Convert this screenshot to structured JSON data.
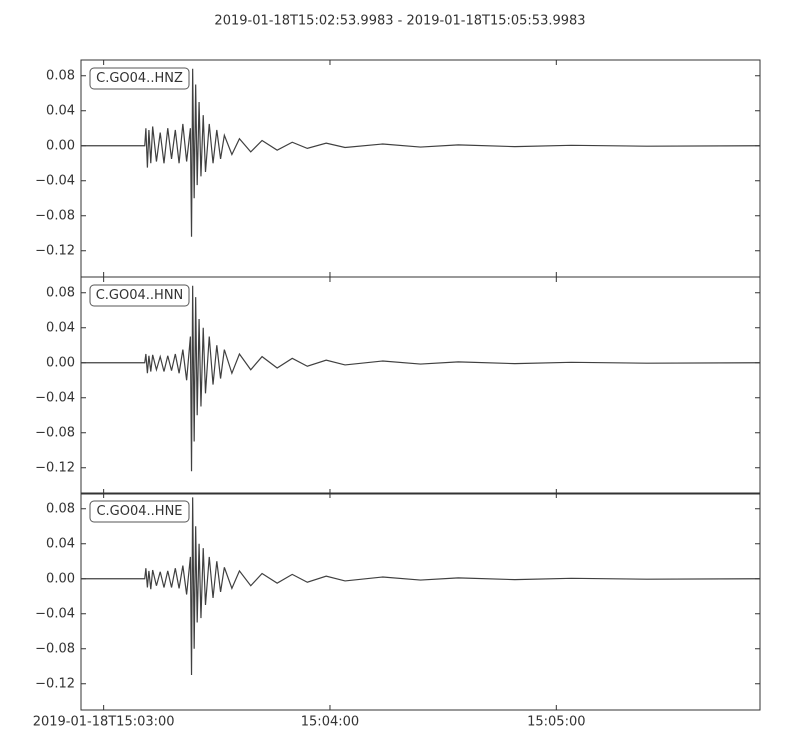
{
  "title": "2019-01-18T15:02:53.9983  -  2019-01-18T15:05:53.9983",
  "chart_data": [
    {
      "type": "line",
      "x": [
        0,
        16.9,
        17.2,
        17.6,
        18.0,
        18.5,
        19,
        20,
        21,
        22,
        23,
        24,
        25,
        26,
        27,
        28,
        29.0,
        29.3,
        29.6,
        30.0,
        30.4,
        30.8,
        31.3,
        31.8,
        32.4,
        33,
        34,
        35,
        36,
        37,
        38,
        40,
        42,
        45,
        48,
        52,
        56,
        60,
        65,
        70,
        80,
        90,
        100,
        115,
        130,
        150,
        180
      ],
      "series": [
        {
          "name": "C.GO04..HNZ",
          "color": "#404040",
          "values": [
            0,
            0,
            0.02,
            -0.025,
            0.018,
            -0.02,
            0.022,
            -0.018,
            0.015,
            -0.02,
            0.02,
            -0.015,
            0.018,
            -0.02,
            0.025,
            -0.018,
            0.02,
            -0.104,
            0.088,
            -0.06,
            0.07,
            -0.045,
            0.05,
            -0.035,
            0.035,
            -0.03,
            0.025,
            -0.02,
            0.018,
            -0.015,
            0.012,
            -0.01,
            0.008,
            -0.007,
            0.006,
            -0.005,
            0.004,
            -0.003,
            0.003,
            -0.002,
            0.002,
            -0.0015,
            0.001,
            -0.001,
            0.0005,
            -0.0005,
            0
          ]
        }
      ],
      "xlim": [
        0,
        180
      ],
      "xticks": [
        6.0017,
        66.0017,
        126.0017
      ],
      "ylim": [
        -0.15,
        0.098
      ],
      "yticks": [
        0.08,
        0.04,
        {
          "value": 0,
          "label": "0.00"
        },
        {
          "value": -0.04,
          "label": "−0.04"
        },
        {
          "value": -0.08,
          "label": "−0.08"
        },
        {
          "value": -0.12,
          "label": "−0.12"
        }
      ]
    },
    {
      "type": "line",
      "x": [
        0,
        16.9,
        17.2,
        17.6,
        18.0,
        18.5,
        19,
        20,
        21,
        22,
        23,
        24,
        25,
        26,
        27,
        28,
        29.0,
        29.3,
        29.6,
        30.0,
        30.4,
        30.8,
        31.3,
        31.8,
        32.4,
        33,
        34,
        35,
        36,
        37,
        38,
        40,
        42,
        45,
        48,
        52,
        56,
        60,
        65,
        70,
        80,
        90,
        100,
        115,
        130,
        150,
        180
      ],
      "series": [
        {
          "name": "C.GO04..HNN",
          "color": "#404040",
          "values": [
            0,
            0,
            0.01,
            -0.012,
            0.008,
            -0.01,
            0.009,
            -0.008,
            0.007,
            -0.01,
            0.008,
            -0.009,
            0.01,
            -0.012,
            0.015,
            -0.02,
            0.03,
            -0.124,
            0.088,
            -0.09,
            0.075,
            -0.06,
            0.05,
            -0.05,
            0.04,
            -0.035,
            0.03,
            -0.025,
            0.02,
            -0.018,
            0.015,
            -0.012,
            0.01,
            -0.008,
            0.007,
            -0.006,
            0.005,
            -0.004,
            0.003,
            -0.0025,
            0.002,
            -0.0015,
            0.001,
            -0.001,
            0.0005,
            -0.0005,
            0
          ]
        }
      ],
      "xlim": [
        0,
        180
      ],
      "xticks": [
        6.0017,
        66.0017,
        126.0017
      ],
      "ylim": [
        -0.15,
        0.098
      ],
      "yticks": [
        0.08,
        0.04,
        {
          "value": 0,
          "label": "0.00"
        },
        {
          "value": -0.04,
          "label": "−0.04"
        },
        {
          "value": -0.08,
          "label": "−0.08"
        },
        {
          "value": -0.12,
          "label": "−0.12"
        }
      ]
    },
    {
      "type": "line",
      "x": [
        0,
        16.9,
        17.2,
        17.6,
        18.0,
        18.5,
        19,
        20,
        21,
        22,
        23,
        24,
        25,
        26,
        27,
        28,
        29.0,
        29.3,
        29.6,
        30.0,
        30.4,
        30.8,
        31.3,
        31.8,
        32.4,
        33,
        34,
        35,
        36,
        37,
        38,
        40,
        42,
        45,
        48,
        52,
        56,
        60,
        65,
        70,
        80,
        90,
        100,
        115,
        130,
        150,
        180
      ],
      "series": [
        {
          "name": "C.GO04..HNE",
          "color": "#404040",
          "values": [
            0,
            0,
            0.012,
            -0.01,
            0.009,
            -0.012,
            0.01,
            -0.008,
            0.008,
            -0.01,
            0.009,
            -0.01,
            0.012,
            -0.011,
            0.015,
            -0.018,
            0.025,
            -0.11,
            0.093,
            -0.08,
            0.06,
            -0.05,
            0.04,
            -0.045,
            0.035,
            -0.03,
            0.025,
            -0.022,
            0.02,
            -0.015,
            0.013,
            -0.011,
            0.009,
            -0.008,
            0.006,
            -0.005,
            0.005,
            -0.004,
            0.003,
            -0.0025,
            0.002,
            -0.0015,
            0.001,
            -0.001,
            0.0005,
            -0.0005,
            0
          ]
        }
      ],
      "xlim": [
        0,
        180
      ],
      "xticks": [
        {
          "value": 6.0017,
          "label": "2019-01-18T15:03:00"
        },
        {
          "value": 66.0017,
          "label": "15:04:00"
        },
        {
          "value": 126.0017,
          "label": "15:05:00"
        }
      ],
      "ylim": [
        -0.15,
        0.098
      ],
      "yticks": [
        0.08,
        0.04,
        {
          "value": 0,
          "label": "0.00"
        },
        {
          "value": -0.04,
          "label": "−0.04"
        },
        {
          "value": -0.08,
          "label": "−0.08"
        },
        {
          "value": -0.12,
          "label": "−0.12"
        }
      ]
    }
  ]
}
